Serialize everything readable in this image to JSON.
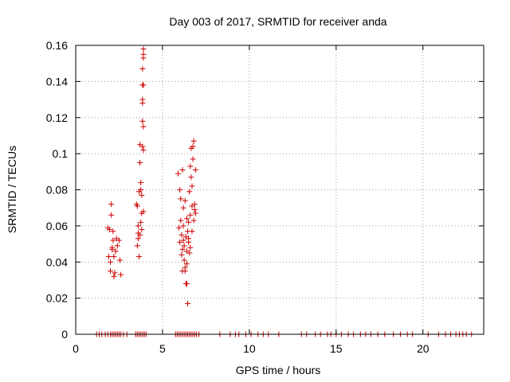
{
  "chart_data": {
    "type": "scatter",
    "title": "Day 003 of 2017, SRMTID for receiver anda",
    "xlabel": "GPS time / hours",
    "ylabel": "SRMTID / TECUs",
    "xlim": [
      0,
      23.5
    ],
    "ylim": [
      0,
      0.16
    ],
    "x_ticks": [
      0,
      5,
      10,
      15,
      20
    ],
    "y_ticks": [
      0,
      0.02,
      0.04,
      0.06,
      0.08,
      0.1,
      0.12,
      0.14,
      0.16
    ],
    "x_tick_labels": [
      "0",
      "5",
      "10",
      "15",
      "20"
    ],
    "y_tick_labels": [
      "0",
      "0.02",
      "0.04",
      "0.06",
      "0.08",
      "0.1",
      "0.12",
      "0.14",
      "0.16"
    ],
    "grid": true,
    "marker": "+",
    "colors": {
      "points": "#cc0000",
      "grid": "#a0a0a0",
      "axes": "#000000"
    },
    "series": [
      {
        "name": "SRMTID",
        "points": [
          [
            1.85,
            0.059
          ],
          [
            1.95,
            0.058
          ],
          [
            1.9,
            0.043
          ],
          [
            2.0,
            0.04
          ],
          [
            2.0,
            0.035
          ],
          [
            2.05,
            0.072
          ],
          [
            2.05,
            0.066
          ],
          [
            2.1,
            0.048
          ],
          [
            2.1,
            0.047
          ],
          [
            2.15,
            0.052
          ],
          [
            2.15,
            0.057
          ],
          [
            2.2,
            0.032
          ],
          [
            2.25,
            0.034
          ],
          [
            2.3,
            0.046
          ],
          [
            2.35,
            0.053
          ],
          [
            2.4,
            0.049
          ],
          [
            2.5,
            0.052
          ],
          [
            2.55,
            0.041
          ],
          [
            2.6,
            0.033
          ],
          [
            2.2,
            0.043
          ],
          [
            3.5,
            0.072
          ],
          [
            3.55,
            0.049
          ],
          [
            3.6,
            0.053
          ],
          [
            3.6,
            0.06
          ],
          [
            3.65,
            0.043
          ],
          [
            3.65,
            0.079
          ],
          [
            3.7,
            0.095
          ],
          [
            3.7,
            0.105
          ],
          [
            3.7,
            0.055
          ],
          [
            3.75,
            0.062
          ],
          [
            3.75,
            0.08
          ],
          [
            3.75,
            0.084
          ],
          [
            3.8,
            0.067
          ],
          [
            3.8,
            0.077
          ],
          [
            3.8,
            0.058
          ],
          [
            3.85,
            0.104
          ],
          [
            3.85,
            0.118
          ],
          [
            3.85,
            0.128
          ],
          [
            3.85,
            0.13
          ],
          [
            3.85,
            0.138
          ],
          [
            3.85,
            0.147
          ],
          [
            3.9,
            0.153
          ],
          [
            3.9,
            0.155
          ],
          [
            3.9,
            0.158
          ],
          [
            3.9,
            0.102
          ],
          [
            3.9,
            0.115
          ],
          [
            3.9,
            0.138
          ],
          [
            3.9,
            0.068
          ],
          [
            3.6,
            0.056
          ],
          [
            3.55,
            0.071
          ],
          [
            5.9,
            0.089
          ],
          [
            5.95,
            0.059
          ],
          [
            6.0,
            0.051
          ],
          [
            6.0,
            0.08
          ],
          [
            6.05,
            0.075
          ],
          [
            6.05,
            0.063
          ],
          [
            6.1,
            0.044
          ],
          [
            6.1,
            0.055
          ],
          [
            6.15,
            0.047
          ],
          [
            6.15,
            0.091
          ],
          [
            6.2,
            0.07
          ],
          [
            6.2,
            0.06
          ],
          [
            6.25,
            0.049
          ],
          [
            6.25,
            0.041
          ],
          [
            6.3,
            0.035
          ],
          [
            6.3,
            0.074
          ],
          [
            6.35,
            0.028
          ],
          [
            6.35,
            0.054
          ],
          [
            6.4,
            0.039
          ],
          [
            6.4,
            0.046
          ],
          [
            6.45,
            0.017
          ],
          [
            6.45,
            0.057
          ],
          [
            6.5,
            0.053
          ],
          [
            6.5,
            0.062
          ],
          [
            6.55,
            0.045
          ],
          [
            6.55,
            0.079
          ],
          [
            6.6,
            0.093
          ],
          [
            6.6,
            0.066
          ],
          [
            6.65,
            0.103
          ],
          [
            6.65,
            0.087
          ],
          [
            6.7,
            0.082
          ],
          [
            6.7,
            0.071
          ],
          [
            6.75,
            0.104
          ],
          [
            6.75,
            0.097
          ],
          [
            6.8,
            0.107
          ],
          [
            6.8,
            0.063
          ],
          [
            6.85,
            0.069
          ],
          [
            6.85,
            0.072
          ],
          [
            6.9,
            0.091
          ],
          [
            6.9,
            0.067
          ],
          [
            6.15,
            0.035
          ],
          [
            6.3,
            0.037
          ],
          [
            6.4,
            0.064
          ],
          [
            6.5,
            0.051
          ],
          [
            6.6,
            0.048
          ],
          [
            6.2,
            0.052
          ],
          [
            6.4,
            0.028
          ],
          [
            6.7,
            0.057
          ],
          [
            1.2,
            0
          ],
          [
            1.35,
            0
          ],
          [
            1.5,
            0
          ],
          [
            1.7,
            0
          ],
          [
            1.85,
            0
          ],
          [
            2.0,
            0
          ],
          [
            2.1,
            0
          ],
          [
            2.2,
            0
          ],
          [
            2.3,
            0
          ],
          [
            2.4,
            0
          ],
          [
            2.5,
            0
          ],
          [
            2.6,
            0
          ],
          [
            2.75,
            0
          ],
          [
            2.95,
            0
          ],
          [
            3.45,
            0
          ],
          [
            3.55,
            0
          ],
          [
            3.65,
            0
          ],
          [
            3.75,
            0
          ],
          [
            3.85,
            0
          ],
          [
            3.95,
            0
          ],
          [
            4.05,
            0
          ],
          [
            5.75,
            0
          ],
          [
            5.85,
            0
          ],
          [
            5.95,
            0
          ],
          [
            6.05,
            0
          ],
          [
            6.15,
            0
          ],
          [
            6.25,
            0
          ],
          [
            6.35,
            0
          ],
          [
            6.45,
            0
          ],
          [
            6.55,
            0
          ],
          [
            6.65,
            0
          ],
          [
            6.75,
            0
          ],
          [
            6.85,
            0
          ],
          [
            6.95,
            0
          ],
          [
            7.1,
            0
          ],
          [
            8.3,
            0
          ],
          [
            8.9,
            0
          ],
          [
            9.2,
            0
          ],
          [
            9.4,
            0
          ],
          [
            9.8,
            0
          ],
          [
            10.1,
            0
          ],
          [
            10.5,
            0
          ],
          [
            10.8,
            0
          ],
          [
            11.1,
            0
          ],
          [
            11.7,
            0
          ],
          [
            13.0,
            0
          ],
          [
            13.3,
            0
          ],
          [
            13.8,
            0
          ],
          [
            14.1,
            0
          ],
          [
            14.5,
            0
          ],
          [
            14.7,
            0
          ],
          [
            15.0,
            0
          ],
          [
            15.3,
            0
          ],
          [
            15.7,
            0
          ],
          [
            16.0,
            0
          ],
          [
            16.4,
            0
          ],
          [
            16.7,
            0
          ],
          [
            17.0,
            0
          ],
          [
            17.4,
            0
          ],
          [
            17.8,
            0
          ],
          [
            18.3,
            0
          ],
          [
            18.7,
            0
          ],
          [
            19.1,
            0
          ],
          [
            19.4,
            0
          ],
          [
            20.3,
            0
          ],
          [
            20.9,
            0
          ],
          [
            21.3,
            0
          ],
          [
            21.6,
            0
          ],
          [
            21.9,
            0
          ],
          [
            22.1,
            0
          ],
          [
            22.3,
            0
          ],
          [
            22.5,
            0
          ],
          [
            22.8,
            0
          ]
        ]
      }
    ]
  }
}
